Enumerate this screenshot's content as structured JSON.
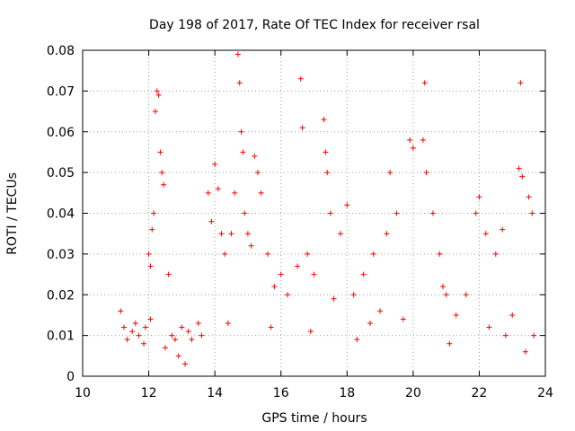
{
  "chart_data": {
    "type": "scatter",
    "title": "Day 198 of 2017, Rate Of TEC Index for receiver rsal",
    "xlabel": "GPS time / hours",
    "ylabel": "ROTI / TECUs",
    "xlim": [
      10,
      24
    ],
    "ylim": [
      0,
      0.08
    ],
    "xticks": [
      "10",
      "12",
      "14",
      "16",
      "18",
      "20",
      "22",
      "24"
    ],
    "yticks": [
      "0",
      "0.01",
      "0.02",
      "0.03",
      "0.04",
      "0.05",
      "0.06",
      "0.07",
      "0.08"
    ],
    "grid": true,
    "marker": "+",
    "marker_color": "#ff0000",
    "series": [
      {
        "name": "ROTI",
        "points": [
          [
            11.15,
            0.016
          ],
          [
            11.25,
            0.012
          ],
          [
            11.35,
            0.009
          ],
          [
            11.5,
            0.011
          ],
          [
            11.6,
            0.013
          ],
          [
            11.7,
            0.01
          ],
          [
            11.85,
            0.008
          ],
          [
            11.9,
            0.012
          ],
          [
            12.05,
            0.014
          ],
          [
            12.1,
            0.036
          ],
          [
            12.15,
            0.04
          ],
          [
            12.2,
            0.065
          ],
          [
            12.25,
            0.07
          ],
          [
            12.3,
            0.069
          ],
          [
            12.35,
            0.055
          ],
          [
            12.4,
            0.05
          ],
          [
            12.45,
            0.047
          ],
          [
            12.0,
            0.03
          ],
          [
            12.05,
            0.027
          ],
          [
            12.6,
            0.025
          ],
          [
            12.7,
            0.01
          ],
          [
            12.8,
            0.009
          ],
          [
            12.9,
            0.005
          ],
          [
            13.0,
            0.012
          ],
          [
            13.2,
            0.011
          ],
          [
            13.3,
            0.009
          ],
          [
            13.5,
            0.013
          ],
          [
            13.6,
            0.01
          ],
          [
            13.8,
            0.045
          ],
          [
            13.9,
            0.038
          ],
          [
            14.0,
            0.052
          ],
          [
            14.1,
            0.046
          ],
          [
            14.2,
            0.035
          ],
          [
            14.3,
            0.03
          ],
          [
            14.5,
            0.035
          ],
          [
            14.6,
            0.045
          ],
          [
            14.7,
            0.079
          ],
          [
            14.75,
            0.072
          ],
          [
            14.8,
            0.06
          ],
          [
            14.85,
            0.055
          ],
          [
            14.9,
            0.04
          ],
          [
            15.0,
            0.035
          ],
          [
            15.2,
            0.054
          ],
          [
            15.3,
            0.05
          ],
          [
            15.4,
            0.045
          ],
          [
            15.6,
            0.03
          ],
          [
            15.8,
            0.022
          ],
          [
            16.0,
            0.025
          ],
          [
            16.2,
            0.02
          ],
          [
            16.5,
            0.027
          ],
          [
            16.6,
            0.073
          ],
          [
            16.65,
            0.061
          ],
          [
            16.8,
            0.03
          ],
          [
            17.0,
            0.025
          ],
          [
            17.3,
            0.063
          ],
          [
            17.35,
            0.055
          ],
          [
            17.4,
            0.05
          ],
          [
            17.5,
            0.04
          ],
          [
            17.8,
            0.035
          ],
          [
            18.0,
            0.042
          ],
          [
            18.2,
            0.02
          ],
          [
            18.5,
            0.025
          ],
          [
            18.8,
            0.03
          ],
          [
            19.2,
            0.035
          ],
          [
            19.3,
            0.05
          ],
          [
            19.5,
            0.04
          ],
          [
            19.9,
            0.058
          ],
          [
            20.0,
            0.056
          ],
          [
            20.3,
            0.058
          ],
          [
            20.35,
            0.072
          ],
          [
            20.4,
            0.05
          ],
          [
            20.6,
            0.04
          ],
          [
            20.8,
            0.03
          ],
          [
            21.0,
            0.02
          ],
          [
            21.3,
            0.015
          ],
          [
            21.6,
            0.02
          ],
          [
            21.9,
            0.04
          ],
          [
            22.0,
            0.044
          ],
          [
            22.2,
            0.035
          ],
          [
            22.5,
            0.03
          ],
          [
            22.7,
            0.036
          ],
          [
            23.0,
            0.015
          ],
          [
            23.2,
            0.051
          ],
          [
            23.25,
            0.072
          ],
          [
            23.3,
            0.049
          ],
          [
            23.5,
            0.044
          ],
          [
            23.6,
            0.04
          ],
          [
            23.65,
            0.01
          ],
          [
            12.5,
            0.007
          ],
          [
            13.1,
            0.003
          ],
          [
            14.4,
            0.013
          ],
          [
            15.7,
            0.012
          ],
          [
            16.9,
            0.011
          ],
          [
            18.3,
            0.009
          ],
          [
            19.7,
            0.014
          ],
          [
            21.1,
            0.008
          ],
          [
            22.3,
            0.012
          ],
          [
            23.4,
            0.006
          ],
          [
            17.6,
            0.019
          ],
          [
            19.0,
            0.016
          ],
          [
            20.9,
            0.022
          ],
          [
            22.8,
            0.01
          ],
          [
            15.1,
            0.032
          ],
          [
            18.7,
            0.013
          ]
        ]
      }
    ]
  }
}
